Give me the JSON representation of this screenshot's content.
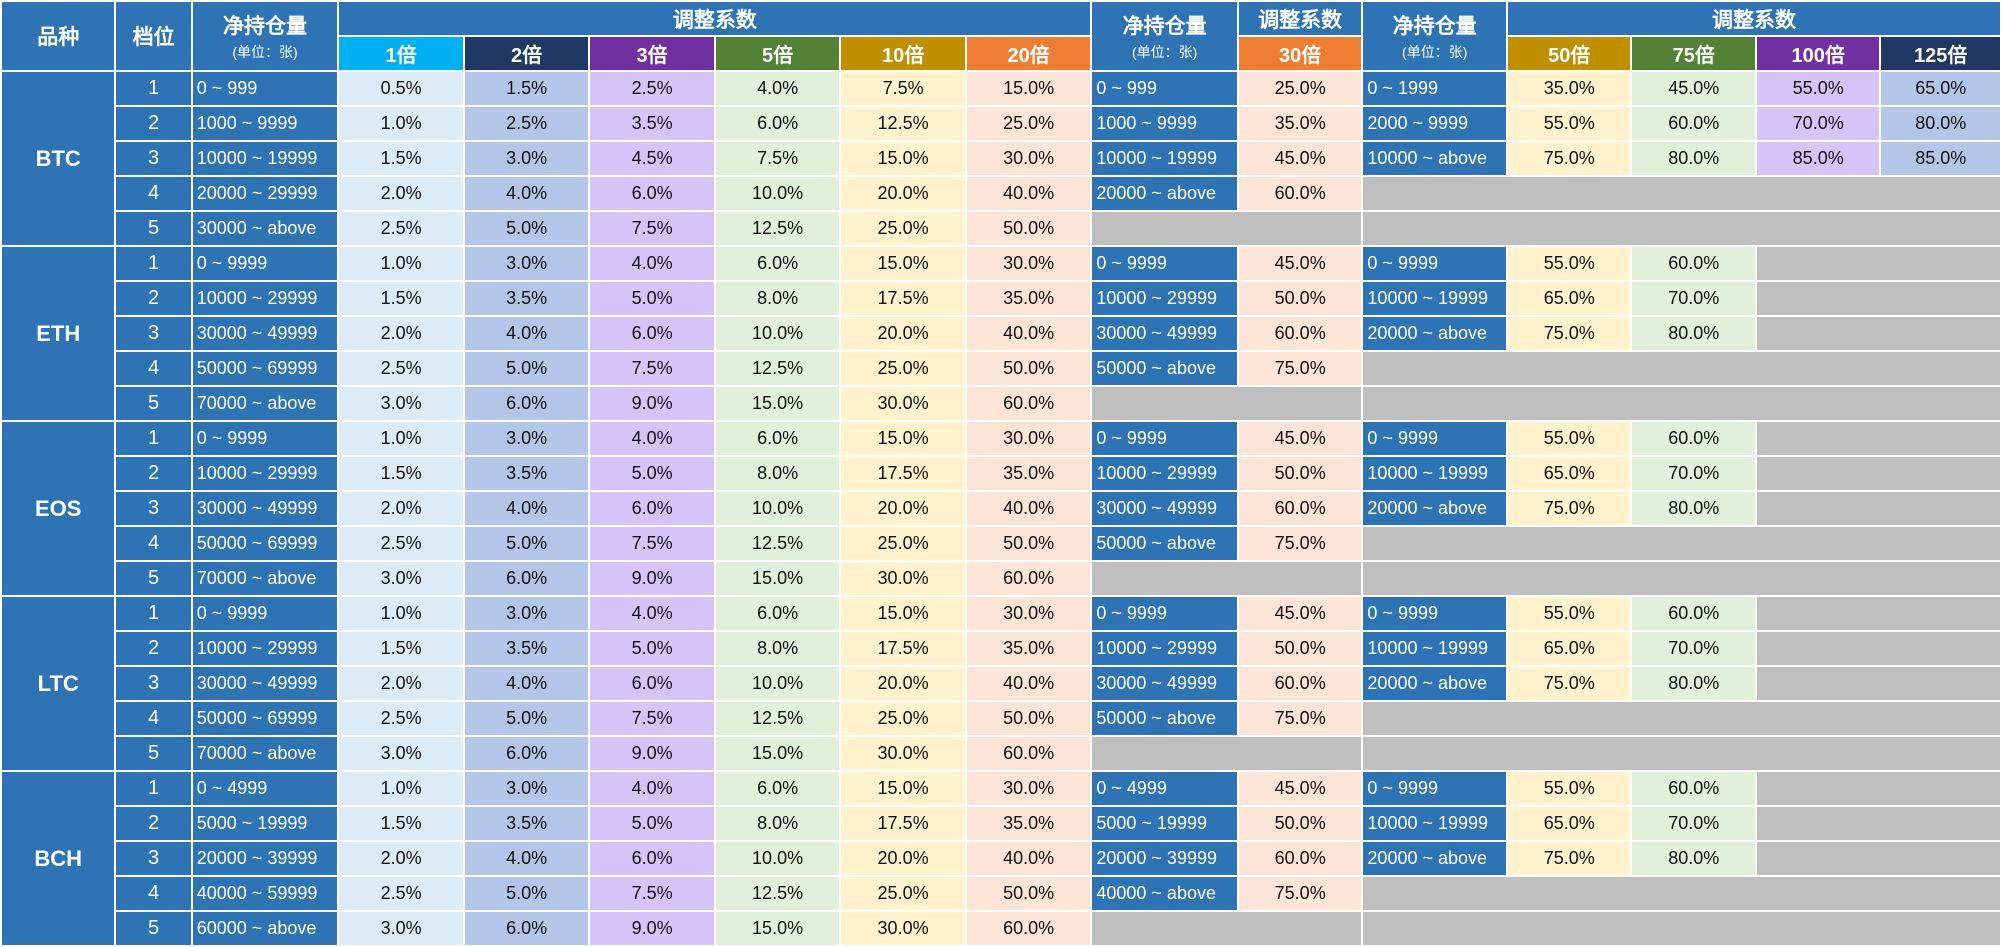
{
  "headers": {
    "product": "品种",
    "tier": "档位",
    "net_position": "净持仓量",
    "unit": "(单位：张)",
    "coef": "调整系数"
  },
  "leverage_groups": [
    {
      "label": "1倍",
      "bg": "#00b0f0",
      "cell": "#ddebf7"
    },
    {
      "label": "2倍",
      "bg": "#1f3864",
      "cell": "#b4c6e7"
    },
    {
      "label": "3倍",
      "bg": "#7030a0",
      "cell": "#d5c4f7"
    },
    {
      "label": "5倍",
      "bg": "#538135",
      "cell": "#e2efda"
    },
    {
      "label": "10倍",
      "bg": "#bf8f00",
      "cell": "#fff2cc"
    },
    {
      "label": "20倍",
      "bg": "#ed7d31",
      "cell": "#fce4d6"
    },
    {
      "label": "30倍",
      "bg": "#ed7d31",
      "cell": "#fce4d6"
    },
    {
      "label": "50倍",
      "bg": "#bf8f00",
      "cell": "#fff2cc"
    },
    {
      "label": "75倍",
      "bg": "#538135",
      "cell": "#e2efda"
    },
    {
      "label": "100倍",
      "bg": "#7030a0",
      "cell": "#d5c4f7"
    },
    {
      "label": "125倍",
      "bg": "#1f3864",
      "cell": "#b4c6e7"
    }
  ],
  "colors": {
    "header_blue": "#2e74b5",
    "filler_gray": "#bfbfbf"
  },
  "products": [
    {
      "name": "BTC",
      "tiers": [
        "1",
        "2",
        "3",
        "4",
        "5"
      ],
      "rangesA": [
        "0 ~ 999",
        "1000 ~ 9999",
        "10000 ~ 19999",
        "20000 ~ 29999",
        "30000 ~ above"
      ],
      "lowLev": [
        [
          "0.5%",
          "1.5%",
          "2.5%",
          "4.0%",
          "7.5%",
          "15.0%"
        ],
        [
          "1.0%",
          "2.5%",
          "3.5%",
          "6.0%",
          "12.5%",
          "25.0%"
        ],
        [
          "1.5%",
          "3.0%",
          "4.5%",
          "7.5%",
          "15.0%",
          "30.0%"
        ],
        [
          "2.0%",
          "4.0%",
          "6.0%",
          "10.0%",
          "20.0%",
          "40.0%"
        ],
        [
          "2.5%",
          "5.0%",
          "7.5%",
          "12.5%",
          "25.0%",
          "50.0%"
        ]
      ],
      "rangesB": [
        "0 ~ 999",
        "1000 ~ 9999",
        "10000 ~ 19999",
        "20000 ~ above"
      ],
      "lev30": [
        "25.0%",
        "35.0%",
        "45.0%",
        "60.0%"
      ],
      "rangesC": [
        "0 ~ 1999",
        "2000 ~ 9999",
        "10000 ~ above"
      ],
      "highLev": [
        [
          "35.0%",
          "45.0%",
          "55.0%",
          "65.0%"
        ],
        [
          "55.0%",
          "60.0%",
          "70.0%",
          "80.0%"
        ],
        [
          "75.0%",
          "80.0%",
          "85.0%",
          "85.0%"
        ]
      ]
    },
    {
      "name": "ETH",
      "tiers": [
        "1",
        "2",
        "3",
        "4",
        "5"
      ],
      "rangesA": [
        "0 ~ 9999",
        "10000 ~ 29999",
        "30000 ~ 49999",
        "50000 ~ 69999",
        "70000 ~ above"
      ],
      "lowLev": [
        [
          "1.0%",
          "3.0%",
          "4.0%",
          "6.0%",
          "15.0%",
          "30.0%"
        ],
        [
          "1.5%",
          "3.5%",
          "5.0%",
          "8.0%",
          "17.5%",
          "35.0%"
        ],
        [
          "2.0%",
          "4.0%",
          "6.0%",
          "10.0%",
          "20.0%",
          "40.0%"
        ],
        [
          "2.5%",
          "5.0%",
          "7.5%",
          "12.5%",
          "25.0%",
          "50.0%"
        ],
        [
          "3.0%",
          "6.0%",
          "9.0%",
          "15.0%",
          "30.0%",
          "60.0%"
        ]
      ],
      "rangesB": [
        "0 ~ 9999",
        "10000 ~ 29999",
        "30000 ~ 49999",
        "50000 ~ above"
      ],
      "lev30": [
        "45.0%",
        "50.0%",
        "60.0%",
        "75.0%"
      ],
      "rangesC": [
        "0 ~ 9999",
        "10000 ~ 19999",
        "20000 ~ above"
      ],
      "highLev": [
        [
          "55.0%",
          "60.0%"
        ],
        [
          "65.0%",
          "70.0%"
        ],
        [
          "75.0%",
          "80.0%"
        ]
      ]
    },
    {
      "name": "EOS",
      "tiers": [
        "1",
        "2",
        "3",
        "4",
        "5"
      ],
      "rangesA": [
        "0 ~ 9999",
        "10000 ~ 29999",
        "30000 ~ 49999",
        "50000 ~ 69999",
        "70000 ~ above"
      ],
      "lowLev": [
        [
          "1.0%",
          "3.0%",
          "4.0%",
          "6.0%",
          "15.0%",
          "30.0%"
        ],
        [
          "1.5%",
          "3.5%",
          "5.0%",
          "8.0%",
          "17.5%",
          "35.0%"
        ],
        [
          "2.0%",
          "4.0%",
          "6.0%",
          "10.0%",
          "20.0%",
          "40.0%"
        ],
        [
          "2.5%",
          "5.0%",
          "7.5%",
          "12.5%",
          "25.0%",
          "50.0%"
        ],
        [
          "3.0%",
          "6.0%",
          "9.0%",
          "15.0%",
          "30.0%",
          "60.0%"
        ]
      ],
      "rangesB": [
        "0 ~ 9999",
        "10000 ~ 29999",
        "30000 ~ 49999",
        "50000 ~ above"
      ],
      "lev30": [
        "45.0%",
        "50.0%",
        "60.0%",
        "75.0%"
      ],
      "rangesC": [
        "0 ~ 9999",
        "10000 ~ 19999",
        "20000 ~ above"
      ],
      "highLev": [
        [
          "55.0%",
          "60.0%"
        ],
        [
          "65.0%",
          "70.0%"
        ],
        [
          "75.0%",
          "80.0%"
        ]
      ]
    },
    {
      "name": "LTC",
      "tiers": [
        "1",
        "2",
        "3",
        "4",
        "5"
      ],
      "rangesA": [
        "0 ~ 9999",
        "10000 ~ 29999",
        "30000 ~ 49999",
        "50000 ~ 69999",
        "70000 ~ above"
      ],
      "lowLev": [
        [
          "1.0%",
          "3.0%",
          "4.0%",
          "6.0%",
          "15.0%",
          "30.0%"
        ],
        [
          "1.5%",
          "3.5%",
          "5.0%",
          "8.0%",
          "17.5%",
          "35.0%"
        ],
        [
          "2.0%",
          "4.0%",
          "6.0%",
          "10.0%",
          "20.0%",
          "40.0%"
        ],
        [
          "2.5%",
          "5.0%",
          "7.5%",
          "12.5%",
          "25.0%",
          "50.0%"
        ],
        [
          "3.0%",
          "6.0%",
          "9.0%",
          "15.0%",
          "30.0%",
          "60.0%"
        ]
      ],
      "rangesB": [
        "0 ~ 9999",
        "10000 ~ 29999",
        "30000 ~ 49999",
        "50000 ~ above"
      ],
      "lev30": [
        "45.0%",
        "50.0%",
        "60.0%",
        "75.0%"
      ],
      "rangesC": [
        "0 ~ 9999",
        "10000 ~ 19999",
        "20000 ~ above"
      ],
      "highLev": [
        [
          "55.0%",
          "60.0%"
        ],
        [
          "65.0%",
          "70.0%"
        ],
        [
          "75.0%",
          "80.0%"
        ]
      ]
    },
    {
      "name": "BCH",
      "tiers": [
        "1",
        "2",
        "3",
        "4",
        "5"
      ],
      "rangesA": [
        "0 ~ 4999",
        "5000 ~ 19999",
        "20000 ~ 39999",
        "40000 ~ 59999",
        "60000 ~ above"
      ],
      "lowLev": [
        [
          "1.0%",
          "3.0%",
          "4.0%",
          "6.0%",
          "15.0%",
          "30.0%"
        ],
        [
          "1.5%",
          "3.5%",
          "5.0%",
          "8.0%",
          "17.5%",
          "35.0%"
        ],
        [
          "2.0%",
          "4.0%",
          "6.0%",
          "10.0%",
          "20.0%",
          "40.0%"
        ],
        [
          "2.5%",
          "5.0%",
          "7.5%",
          "12.5%",
          "25.0%",
          "50.0%"
        ],
        [
          "3.0%",
          "6.0%",
          "9.0%",
          "15.0%",
          "30.0%",
          "60.0%"
        ]
      ],
      "rangesB": [
        "0 ~ 4999",
        "5000 ~ 19999",
        "20000 ~ 39999",
        "40000 ~ above"
      ],
      "lev30": [
        "45.0%",
        "50.0%",
        "60.0%",
        "75.0%"
      ],
      "rangesC": [
        "0 ~ 9999",
        "10000 ~ 19999",
        "20000 ~ above"
      ],
      "highLev": [
        [
          "55.0%",
          "60.0%"
        ],
        [
          "65.0%",
          "70.0%"
        ],
        [
          "75.0%",
          "80.0%"
        ]
      ]
    }
  ]
}
